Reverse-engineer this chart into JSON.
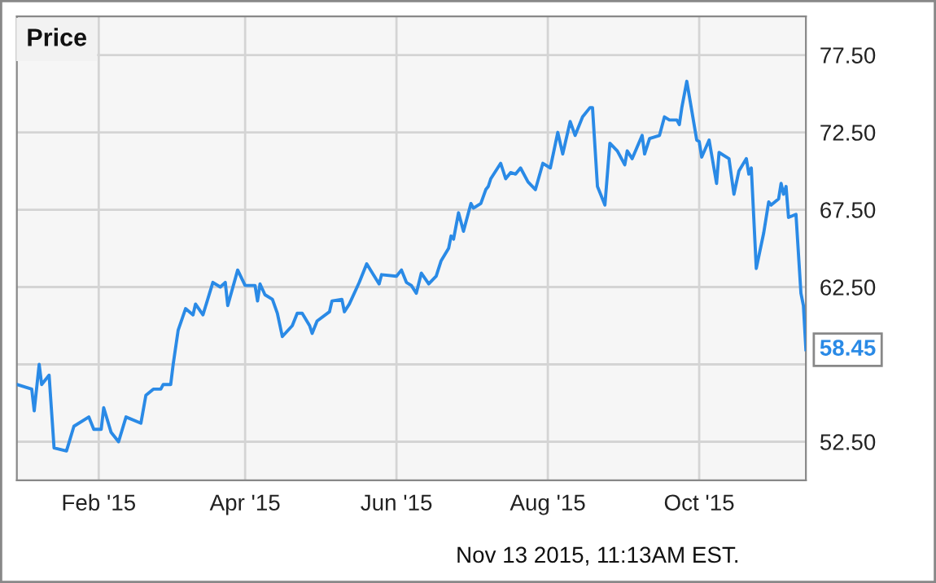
{
  "chart_data": {
    "type": "line",
    "title": "Price",
    "x": [
      "2014-12-30",
      "2015-01-05",
      "2015-01-06",
      "2015-01-08",
      "2015-01-09",
      "2015-01-12",
      "2015-01-14",
      "2015-01-19",
      "2015-01-22",
      "2015-01-28",
      "2015-01-30",
      "2015-02-02",
      "2015-02-03",
      "2015-02-06",
      "2015-02-09",
      "2015-02-12",
      "2015-02-18",
      "2015-02-20",
      "2015-02-23",
      "2015-02-26",
      "2015-02-27",
      "2015-03-02",
      "2015-03-03",
      "2015-03-05",
      "2015-03-08",
      "2015-03-11",
      "2015-03-12",
      "2015-03-15",
      "2015-03-19",
      "2015-03-22",
      "2015-03-24",
      "2015-03-25",
      "2015-03-29",
      "2015-04-01",
      "2015-04-05",
      "2015-04-06",
      "2015-04-07",
      "2015-04-09",
      "2015-04-12",
      "2015-04-14",
      "2015-04-16",
      "2015-04-20",
      "2015-04-22",
      "2015-04-24",
      "2015-04-27",
      "2015-04-28",
      "2015-04-30",
      "2015-05-05",
      "2015-05-06",
      "2015-05-10",
      "2015-05-11",
      "2015-05-13",
      "2015-05-17",
      "2015-05-20",
      "2015-05-25",
      "2015-05-26",
      "2015-06-01",
      "2015-06-03",
      "2015-06-05",
      "2015-06-07",
      "2015-06-09",
      "2015-06-11",
      "2015-06-14",
      "2015-06-17",
      "2015-06-19",
      "2015-06-22",
      "2015-06-23",
      "2015-06-24",
      "2015-06-26",
      "2015-06-28",
      "2015-07-01",
      "2015-07-02",
      "2015-07-05",
      "2015-07-07",
      "2015-07-08",
      "2015-07-09",
      "2015-07-13",
      "2015-07-15",
      "2015-07-17",
      "2015-07-19",
      "2015-07-21",
      "2015-07-24",
      "2015-07-27",
      "2015-07-30",
      "2015-08-02",
      "2015-08-05",
      "2015-08-07",
      "2015-08-10",
      "2015-08-12",
      "2015-08-15",
      "2015-08-18",
      "2015-08-19",
      "2015-08-21",
      "2015-08-24",
      "2015-08-26",
      "2015-08-29",
      "2015-09-01",
      "2015-09-02",
      "2015-09-04",
      "2015-09-08",
      "2015-09-09",
      "2015-09-11",
      "2015-09-15",
      "2015-09-17",
      "2015-09-19",
      "2015-09-22",
      "2015-09-23",
      "2015-09-24",
      "2015-09-26",
      "2015-09-28",
      "2015-09-30",
      "2015-10-01",
      "2015-10-02",
      "2015-10-05",
      "2015-10-08",
      "2015-10-09",
      "2015-10-13",
      "2015-10-15",
      "2015-10-17",
      "2015-10-20",
      "2015-10-21",
      "2015-10-22",
      "2015-10-24",
      "2015-10-27",
      "2015-10-29",
      "2015-10-30",
      "2015-11-02",
      "2015-11-03",
      "2015-11-04",
      "2015-11-05",
      "2015-11-06",
      "2015-11-09",
      "2015-11-11",
      "2015-11-12",
      "2015-11-13"
    ],
    "series": [
      {
        "color": "#2a8ae6",
        "values": [
          56.2,
          55.9,
          54.5,
          57.5,
          56.2,
          56.8,
          52.1,
          51.9,
          53.5,
          54.1,
          53.3,
          53.3,
          54.7,
          53.1,
          52.5,
          54.1,
          53.7,
          55.5,
          55.9,
          55.9,
          56.2,
          56.2,
          57.5,
          59.7,
          61.1,
          60.7,
          61.4,
          60.7,
          62.8,
          62.5,
          62.8,
          61.3,
          63.6,
          62.6,
          62.6,
          61.6,
          62.7,
          62.0,
          61.7,
          60.8,
          59.3,
          60.0,
          60.8,
          60.8,
          60.0,
          59.5,
          60.3,
          60.9,
          61.6,
          61.7,
          60.9,
          61.4,
          62.8,
          64.0,
          62.7,
          63.3,
          63.2,
          63.6,
          62.8,
          62.6,
          62.1,
          63.4,
          62.7,
          63.2,
          64.2,
          65.0,
          65.8,
          65.6,
          67.3,
          66.1,
          67.9,
          67.6,
          67.9,
          68.8,
          69.0,
          69.5,
          70.5,
          69.5,
          69.9,
          69.8,
          70.2,
          69.3,
          68.8,
          70.5,
          70.2,
          72.5,
          71.1,
          73.2,
          72.3,
          73.5,
          74.1,
          74.1,
          69.0,
          67.8,
          71.8,
          71.3,
          70.4,
          71.3,
          70.8,
          72.3,
          71.1,
          72.1,
          72.3,
          73.5,
          73.3,
          73.3,
          73.0,
          74.1,
          75.8,
          73.9,
          72.0,
          71.9,
          70.9,
          72.0,
          69.2,
          71.2,
          70.8,
          68.5,
          70.0,
          70.8,
          69.8,
          70.2,
          63.7,
          66.0,
          68.0,
          67.8,
          68.2,
          69.2,
          68.5,
          69.0,
          67.0,
          67.2,
          62.1,
          61.3,
          58.45
        ]
      }
    ],
    "xlim": [
      "2014-12-30",
      "2015-11-13"
    ],
    "xticks": [
      {
        "value": "2015-02-01",
        "label": "Feb '15"
      },
      {
        "value": "2015-04-01",
        "label": "Apr '15"
      },
      {
        "value": "2015-06-01",
        "label": "Jun '15"
      },
      {
        "value": "2015-08-01",
        "label": "Aug '15"
      },
      {
        "value": "2015-10-01",
        "label": "Oct '15"
      }
    ],
    "ylim": [
      50,
      80
    ],
    "yticks": [
      {
        "value": 52.5,
        "label": "52.50"
      },
      {
        "value": 57.5,
        "label": null
      },
      {
        "value": 62.5,
        "label": "62.50"
      },
      {
        "value": 67.5,
        "label": "67.50"
      },
      {
        "value": 72.5,
        "label": "72.50"
      },
      {
        "value": 77.5,
        "label": "77.50"
      }
    ],
    "grid": true,
    "marker": "none",
    "line_style": "solid",
    "annotations": [
      {
        "text": "58.45",
        "x": "2015-11-13",
        "y": 58.45
      },
      "Nov 13 2015, 11:13AM EST."
    ]
  }
}
